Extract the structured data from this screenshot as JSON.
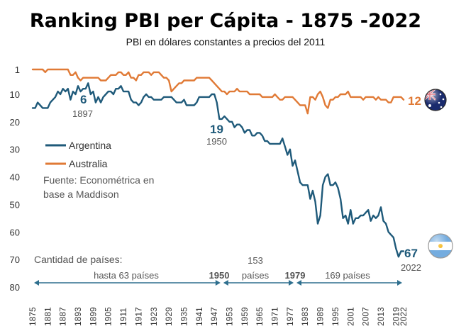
{
  "chart_data": {
    "type": "line",
    "title": "Ranking PBI per Cápita - 1875 -2022",
    "subtitle": "PBI en dólares constantes a precios del 2011",
    "x_ticks": [
      1875,
      1881,
      1887,
      1893,
      1899,
      1905,
      1911,
      1917,
      1923,
      1929,
      1935,
      1941,
      1947,
      1953,
      1959,
      1965,
      1971,
      1977,
      1983,
      1989,
      1995,
      2001,
      2007,
      2013,
      2019,
      2022
    ],
    "y_ticks": [
      1,
      10,
      20,
      30,
      40,
      50,
      60,
      70,
      80
    ],
    "ylim": [
      1,
      80
    ],
    "xlim": [
      1875,
      2022
    ],
    "y_inverted": true,
    "grid": false,
    "legend_position": "left",
    "series": [
      {
        "name": "Argentina",
        "color": "#1f5a7a",
        "points": [
          [
            1875,
            15
          ],
          [
            1876,
            15
          ],
          [
            1877,
            13
          ],
          [
            1878,
            14
          ],
          [
            1879,
            15
          ],
          [
            1880,
            15
          ],
          [
            1881,
            15
          ],
          [
            1882,
            13
          ],
          [
            1883,
            12
          ],
          [
            1884,
            11
          ],
          [
            1885,
            9
          ],
          [
            1886,
            10
          ],
          [
            1887,
            8
          ],
          [
            1888,
            9
          ],
          [
            1889,
            8
          ],
          [
            1890,
            12
          ],
          [
            1891,
            9
          ],
          [
            1892,
            10
          ],
          [
            1893,
            7
          ],
          [
            1894,
            9
          ],
          [
            1895,
            8
          ],
          [
            1896,
            8
          ],
          [
            1897,
            6
          ],
          [
            1898,
            10
          ],
          [
            1899,
            9
          ],
          [
            1900,
            13
          ],
          [
            1901,
            11
          ],
          [
            1902,
            13
          ],
          [
            1903,
            11
          ],
          [
            1904,
            10
          ],
          [
            1905,
            9
          ],
          [
            1906,
            9
          ],
          [
            1907,
            10
          ],
          [
            1908,
            8
          ],
          [
            1909,
            8
          ],
          [
            1910,
            7
          ],
          [
            1911,
            9
          ],
          [
            1912,
            9
          ],
          [
            1913,
            9
          ],
          [
            1914,
            12
          ],
          [
            1915,
            13
          ],
          [
            1916,
            13
          ],
          [
            1917,
            14
          ],
          [
            1918,
            13
          ],
          [
            1919,
            11
          ],
          [
            1920,
            10
          ],
          [
            1921,
            11
          ],
          [
            1922,
            11
          ],
          [
            1923,
            12
          ],
          [
            1924,
            12
          ],
          [
            1925,
            12
          ],
          [
            1926,
            12
          ],
          [
            1927,
            11
          ],
          [
            1928,
            11
          ],
          [
            1929,
            11
          ],
          [
            1930,
            11
          ],
          [
            1931,
            12
          ],
          [
            1932,
            13
          ],
          [
            1933,
            13
          ],
          [
            1934,
            13
          ],
          [
            1935,
            12
          ],
          [
            1936,
            14
          ],
          [
            1937,
            14
          ],
          [
            1938,
            14
          ],
          [
            1939,
            14
          ],
          [
            1940,
            13
          ],
          [
            1941,
            11
          ],
          [
            1942,
            11
          ],
          [
            1943,
            11
          ],
          [
            1944,
            11
          ],
          [
            1945,
            11
          ],
          [
            1946,
            10
          ],
          [
            1947,
            10
          ],
          [
            1948,
            13
          ],
          [
            1949,
            19
          ],
          [
            1950,
            19
          ],
          [
            1951,
            18
          ],
          [
            1952,
            19
          ],
          [
            1953,
            20
          ],
          [
            1954,
            20
          ],
          [
            1955,
            22
          ],
          [
            1956,
            21
          ],
          [
            1957,
            21
          ],
          [
            1958,
            22
          ],
          [
            1959,
            24
          ],
          [
            1960,
            23
          ],
          [
            1961,
            23
          ],
          [
            1962,
            25
          ],
          [
            1963,
            25
          ],
          [
            1964,
            24
          ],
          [
            1965,
            24
          ],
          [
            1966,
            25
          ],
          [
            1967,
            27
          ],
          [
            1968,
            27
          ],
          [
            1969,
            28
          ],
          [
            1970,
            28
          ],
          [
            1971,
            28
          ],
          [
            1972,
            28
          ],
          [
            1973,
            28
          ],
          [
            1974,
            26
          ],
          [
            1975,
            29
          ],
          [
            1976,
            32
          ],
          [
            1977,
            30
          ],
          [
            1978,
            36
          ],
          [
            1979,
            34
          ],
          [
            1980,
            38
          ],
          [
            1981,
            42
          ],
          [
            1982,
            43
          ],
          [
            1983,
            43
          ],
          [
            1984,
            43
          ],
          [
            1985,
            48
          ],
          [
            1986,
            45
          ],
          [
            1987,
            49
          ],
          [
            1988,
            57
          ],
          [
            1989,
            54
          ],
          [
            1990,
            43
          ],
          [
            1991,
            40
          ],
          [
            1992,
            39
          ],
          [
            1993,
            43
          ],
          [
            1994,
            43
          ],
          [
            1995,
            42
          ],
          [
            1996,
            44
          ],
          [
            1997,
            48
          ],
          [
            1998,
            55
          ],
          [
            1999,
            54
          ],
          [
            2000,
            57
          ],
          [
            2001,
            52
          ],
          [
            2002,
            57
          ],
          [
            2003,
            55
          ],
          [
            2004,
            55
          ],
          [
            2005,
            54
          ],
          [
            2006,
            54
          ],
          [
            2007,
            53
          ],
          [
            2008,
            52
          ],
          [
            2009,
            56
          ],
          [
            2010,
            54
          ],
          [
            2011,
            55
          ],
          [
            2012,
            54
          ],
          [
            2013,
            51
          ],
          [
            2014,
            56
          ],
          [
            2015,
            57
          ],
          [
            2016,
            60
          ],
          [
            2017,
            61
          ],
          [
            2018,
            62
          ],
          [
            2019,
            66
          ],
          [
            2020,
            69
          ],
          [
            2021,
            67
          ],
          [
            2022,
            67
          ]
        ]
      },
      {
        "name": "Australia",
        "color": "#e07a36",
        "points": [
          [
            1875,
            1
          ],
          [
            1876,
            1
          ],
          [
            1877,
            1
          ],
          [
            1878,
            1
          ],
          [
            1879,
            1
          ],
          [
            1880,
            2
          ],
          [
            1881,
            1
          ],
          [
            1882,
            1
          ],
          [
            1883,
            1
          ],
          [
            1884,
            1
          ],
          [
            1885,
            1
          ],
          [
            1886,
            1
          ],
          [
            1887,
            1
          ],
          [
            1888,
            1
          ],
          [
            1889,
            1
          ],
          [
            1890,
            3
          ],
          [
            1891,
            3
          ],
          [
            1892,
            2
          ],
          [
            1893,
            4
          ],
          [
            1894,
            5
          ],
          [
            1895,
            4
          ],
          [
            1896,
            4
          ],
          [
            1897,
            4
          ],
          [
            1898,
            4
          ],
          [
            1899,
            4
          ],
          [
            1900,
            4
          ],
          [
            1901,
            4
          ],
          [
            1902,
            5
          ],
          [
            1903,
            5
          ],
          [
            1904,
            5
          ],
          [
            1905,
            4
          ],
          [
            1906,
            3
          ],
          [
            1907,
            3
          ],
          [
            1908,
            3
          ],
          [
            1909,
            2
          ],
          [
            1910,
            2
          ],
          [
            1911,
            3
          ],
          [
            1912,
            3
          ],
          [
            1913,
            2
          ],
          [
            1914,
            4
          ],
          [
            1915,
            4
          ],
          [
            1916,
            5
          ],
          [
            1917,
            3
          ],
          [
            1918,
            3
          ],
          [
            1919,
            2
          ],
          [
            1920,
            2
          ],
          [
            1921,
            2
          ],
          [
            1922,
            3
          ],
          [
            1923,
            2
          ],
          [
            1924,
            2
          ],
          [
            1925,
            2
          ],
          [
            1926,
            3
          ],
          [
            1927,
            4
          ],
          [
            1928,
            4
          ],
          [
            1929,
            5
          ],
          [
            1930,
            9
          ],
          [
            1931,
            8
          ],
          [
            1932,
            7
          ],
          [
            1933,
            6
          ],
          [
            1934,
            6
          ],
          [
            1935,
            5
          ],
          [
            1936,
            5
          ],
          [
            1937,
            5
          ],
          [
            1938,
            5
          ],
          [
            1939,
            5
          ],
          [
            1940,
            4
          ],
          [
            1941,
            4
          ],
          [
            1942,
            4
          ],
          [
            1943,
            4
          ],
          [
            1944,
            4
          ],
          [
            1945,
            4
          ],
          [
            1946,
            5
          ],
          [
            1947,
            6
          ],
          [
            1948,
            7
          ],
          [
            1949,
            8
          ],
          [
            1950,
            9
          ],
          [
            1951,
            9
          ],
          [
            1952,
            10
          ],
          [
            1953,
            9
          ],
          [
            1954,
            9
          ],
          [
            1955,
            9
          ],
          [
            1956,
            8
          ],
          [
            1957,
            9
          ],
          [
            1958,
            9
          ],
          [
            1959,
            9
          ],
          [
            1960,
            9
          ],
          [
            1961,
            10
          ],
          [
            1962,
            10
          ],
          [
            1963,
            10
          ],
          [
            1964,
            10
          ],
          [
            1965,
            10
          ],
          [
            1966,
            11
          ],
          [
            1967,
            11
          ],
          [
            1968,
            11
          ],
          [
            1969,
            11
          ],
          [
            1970,
            11
          ],
          [
            1971,
            10
          ],
          [
            1972,
            11
          ],
          [
            1973,
            12
          ],
          [
            1974,
            12
          ],
          [
            1975,
            11
          ],
          [
            1976,
            11
          ],
          [
            1977,
            11
          ],
          [
            1978,
            11
          ],
          [
            1979,
            12
          ],
          [
            1980,
            13
          ],
          [
            1981,
            14
          ],
          [
            1982,
            14
          ],
          [
            1983,
            14
          ],
          [
            1984,
            17
          ],
          [
            1985,
            11
          ],
          [
            1986,
            11
          ],
          [
            1987,
            12
          ],
          [
            1988,
            10
          ],
          [
            1989,
            9
          ],
          [
            1990,
            11
          ],
          [
            1991,
            14
          ],
          [
            1992,
            15
          ],
          [
            1993,
            12
          ],
          [
            1994,
            12
          ],
          [
            1995,
            11
          ],
          [
            1996,
            11
          ],
          [
            1997,
            10
          ],
          [
            1998,
            10
          ],
          [
            1999,
            10
          ],
          [
            2000,
            9
          ],
          [
            2001,
            11
          ],
          [
            2002,
            11
          ],
          [
            2003,
            11
          ],
          [
            2004,
            11
          ],
          [
            2005,
            11
          ],
          [
            2006,
            12
          ],
          [
            2007,
            11
          ],
          [
            2008,
            11
          ],
          [
            2009,
            11
          ],
          [
            2010,
            11
          ],
          [
            2011,
            12
          ],
          [
            2012,
            11
          ],
          [
            2013,
            12
          ],
          [
            2014,
            12
          ],
          [
            2015,
            12
          ],
          [
            2016,
            13
          ],
          [
            2017,
            13
          ],
          [
            2018,
            11
          ],
          [
            2019,
            11
          ],
          [
            2020,
            11
          ],
          [
            2021,
            11
          ],
          [
            2022,
            12
          ]
        ]
      }
    ],
    "callouts": [
      {
        "series": "Argentina",
        "year": 1897,
        "value_label": "6",
        "year_label": "1897"
      },
      {
        "series": "Argentina",
        "year": 1950,
        "value_label": "19",
        "year_label": "1950"
      },
      {
        "series": "Argentina",
        "year": 2022,
        "value_label": "67",
        "year_label": "2022"
      },
      {
        "series": "Australia",
        "year": 2022,
        "value_label": "12",
        "year_label": ""
      }
    ],
    "source_note": [
      "Fuente: Econométrica en",
      "base a Maddison"
    ],
    "periods_heading": "Cantidad de países:",
    "periods": [
      {
        "from": 1875,
        "to": 1950,
        "label": "hasta 63 países",
        "end_label": "1950"
      },
      {
        "from": 1950,
        "to": 1979,
        "label_lines": [
          "153",
          "países"
        ],
        "end_label": "1979"
      },
      {
        "from": 1979,
        "to": 2022,
        "label": "169 países"
      }
    ],
    "flags": [
      {
        "country": "Australia",
        "icon": "australia-flag-icon"
      },
      {
        "country": "Argentina",
        "icon": "argentina-flag-icon"
      }
    ]
  }
}
